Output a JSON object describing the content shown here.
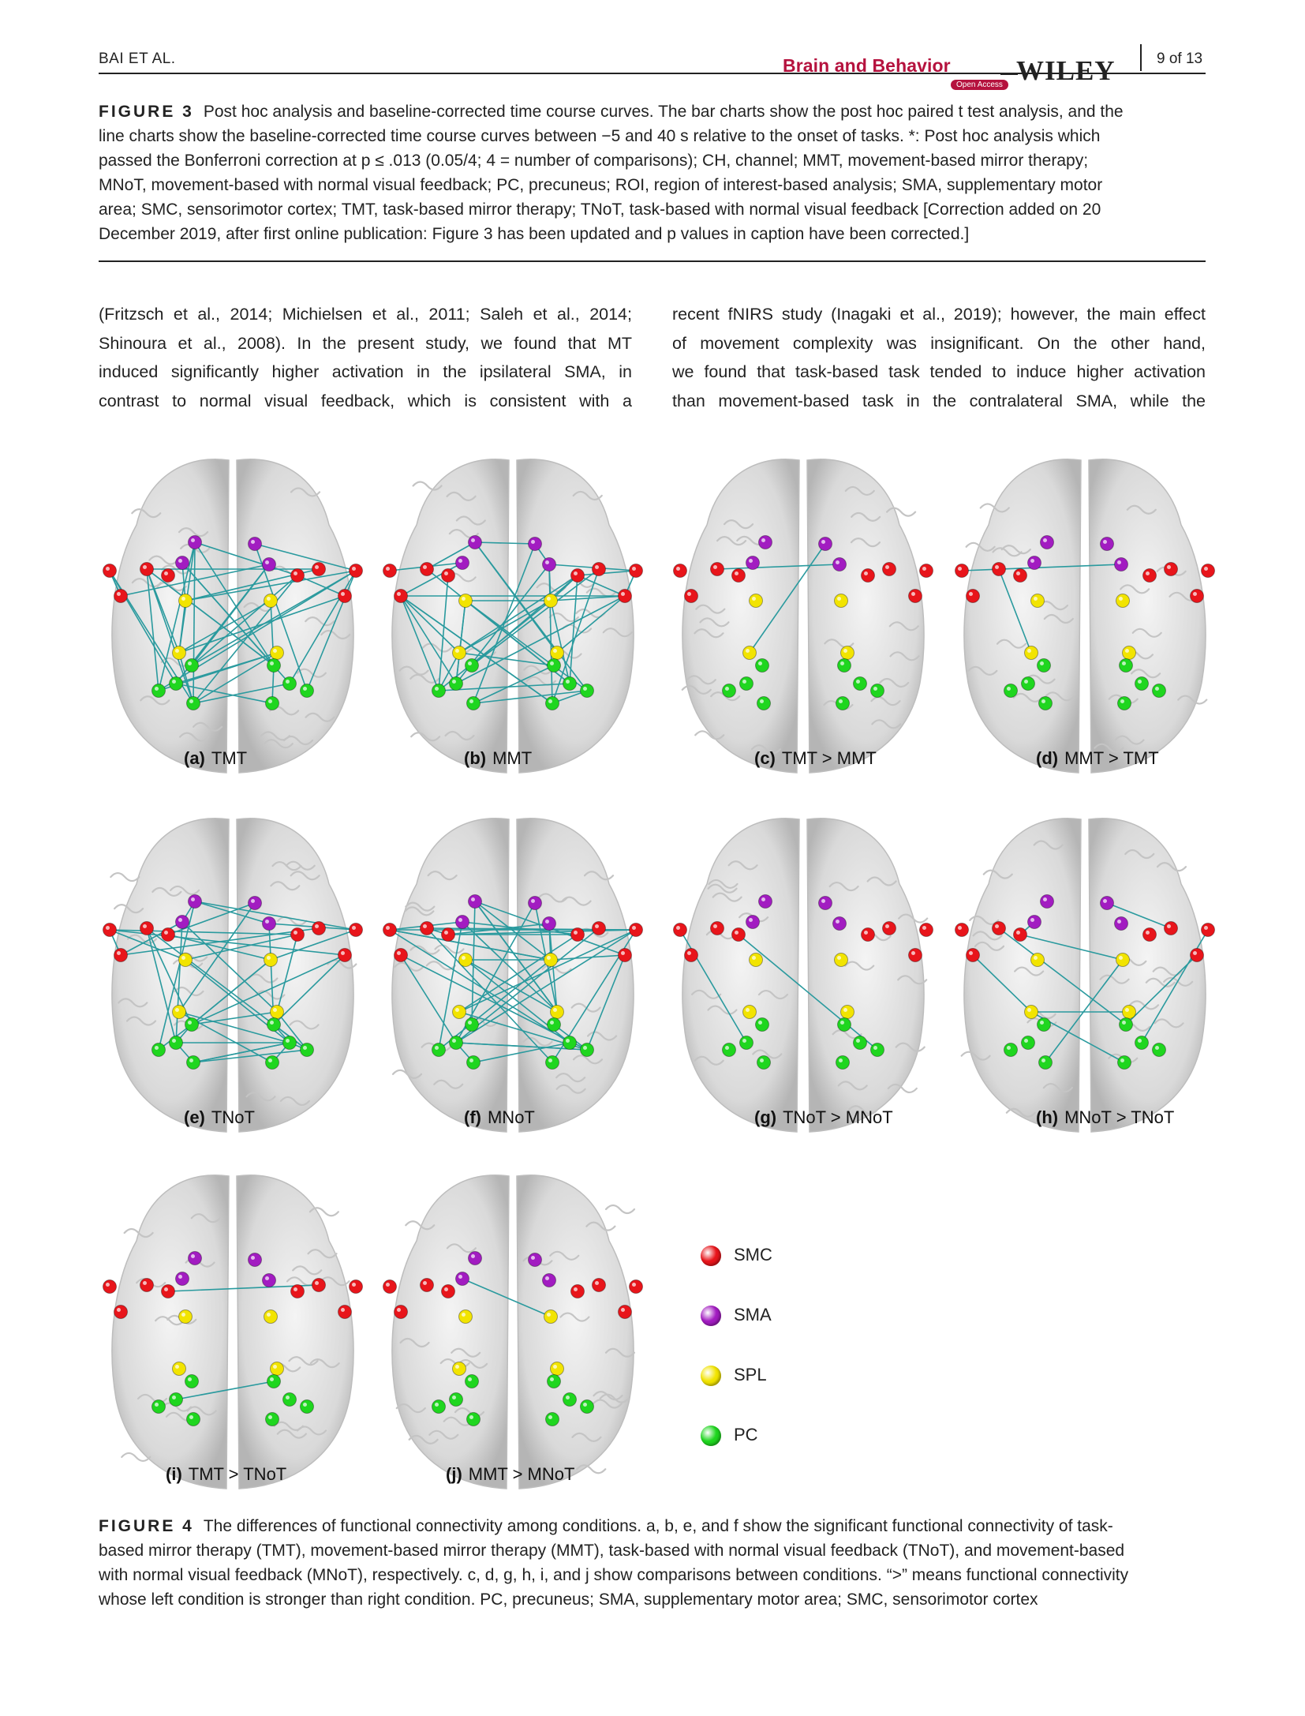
{
  "header": {
    "running_author": "BAI ET AL.",
    "journal": "Brain and Behavior",
    "open_access": "Open Access",
    "publisher": "WILEY",
    "page": "9 of 13"
  },
  "figure3_caption": {
    "label": "FIGURE 3",
    "lines": [
      "Post hoc analysis and baseline-corrected time course curves. The bar charts show the post hoc paired t test analysis, and the",
      "line charts show the baseline-corrected time course curves between −5 and 40 s relative to the onset of tasks. *: Post hoc analysis which",
      "passed the Bonferroni correction at p ≤ .013 (0.05/4; 4 = number of comparisons); CH, channel; MMT, movement-based mirror therapy;",
      "MNoT, movement-based with normal visual feedback; PC, precuneus; ROI, region of interest-based analysis; SMA, supplementary motor",
      "area; SMC, sensorimotor cortex; TMT, task-based mirror therapy; TNoT, task-based with normal visual feedback [Correction added on 20",
      "December 2019, after first online publication: Figure 3 has been updated and p values in caption have been corrected.]"
    ]
  },
  "body_text": {
    "left": [
      "(Fritzsch et al., 2014; Michielsen et al., 2011; Saleh et al., 2014;",
      "Shinoura et al., 2008). In the present study, we found that MT",
      "induced significantly higher activation in the ipsilateral SMA, in",
      "contrast to normal visual feedback, which is consistent with a"
    ],
    "right": [
      "recent fNIRS study (Inagaki et al., 2019); however, the main effect",
      "of movement complexity was insignificant. On the other hand,",
      "we found that task-based task tended to induce higher activation",
      "than movement-based task in the contralateral SMA, while the"
    ]
  },
  "figure4": {
    "panels": [
      {
        "letter": "(a)",
        "title": "TMT",
        "connections": "dense"
      },
      {
        "letter": "(b)",
        "title": "MMT",
        "connections": "dense"
      },
      {
        "letter": "(c)",
        "title": "TMT > MMT",
        "connections": "sparse"
      },
      {
        "letter": "(d)",
        "title": "MMT > TMT",
        "connections": "sparse"
      },
      {
        "letter": "(e)",
        "title": "TNoT",
        "connections": "dense"
      },
      {
        "letter": "(f)",
        "title": "MNoT",
        "connections": "dense"
      },
      {
        "letter": "(g)",
        "title": "TNoT > MNoT",
        "connections": "sparse"
      },
      {
        "letter": "(h)",
        "title": "MNoT > TNoT",
        "connections": "medium"
      },
      {
        "letter": "(i)",
        "title": "TMT > TNoT",
        "connections": "sparse"
      },
      {
        "letter": "(j)",
        "title": "MMT > MNoT",
        "connections": "sparse"
      }
    ],
    "legend": [
      {
        "label": "SMC",
        "color": "#e8151b"
      },
      {
        "label": "SMA",
        "color": "#a21cc1"
      },
      {
        "label": "SPL",
        "color": "#f2e400"
      },
      {
        "label": "PC",
        "color": "#1fd61f"
      }
    ],
    "edge_color": "#2a9a9e",
    "caption": {
      "label": "FIGURE 4",
      "lines": [
        "The differences of functional connectivity among conditions. a, b, e, and f show the significant functional connectivity of task-",
        "based mirror therapy (TMT), movement-based mirror therapy (MMT), task-based with normal visual feedback (TNoT), and movement-based",
        "with normal visual feedback (MNoT), respectively. c, d, g, h, i, and j show comparisons between conditions. “>” means functional connectivity",
        "whose left condition is stronger than right condition. PC, precuneus; SMA, supplementary motor area; SMC, sensorimotor cortex"
      ]
    }
  }
}
